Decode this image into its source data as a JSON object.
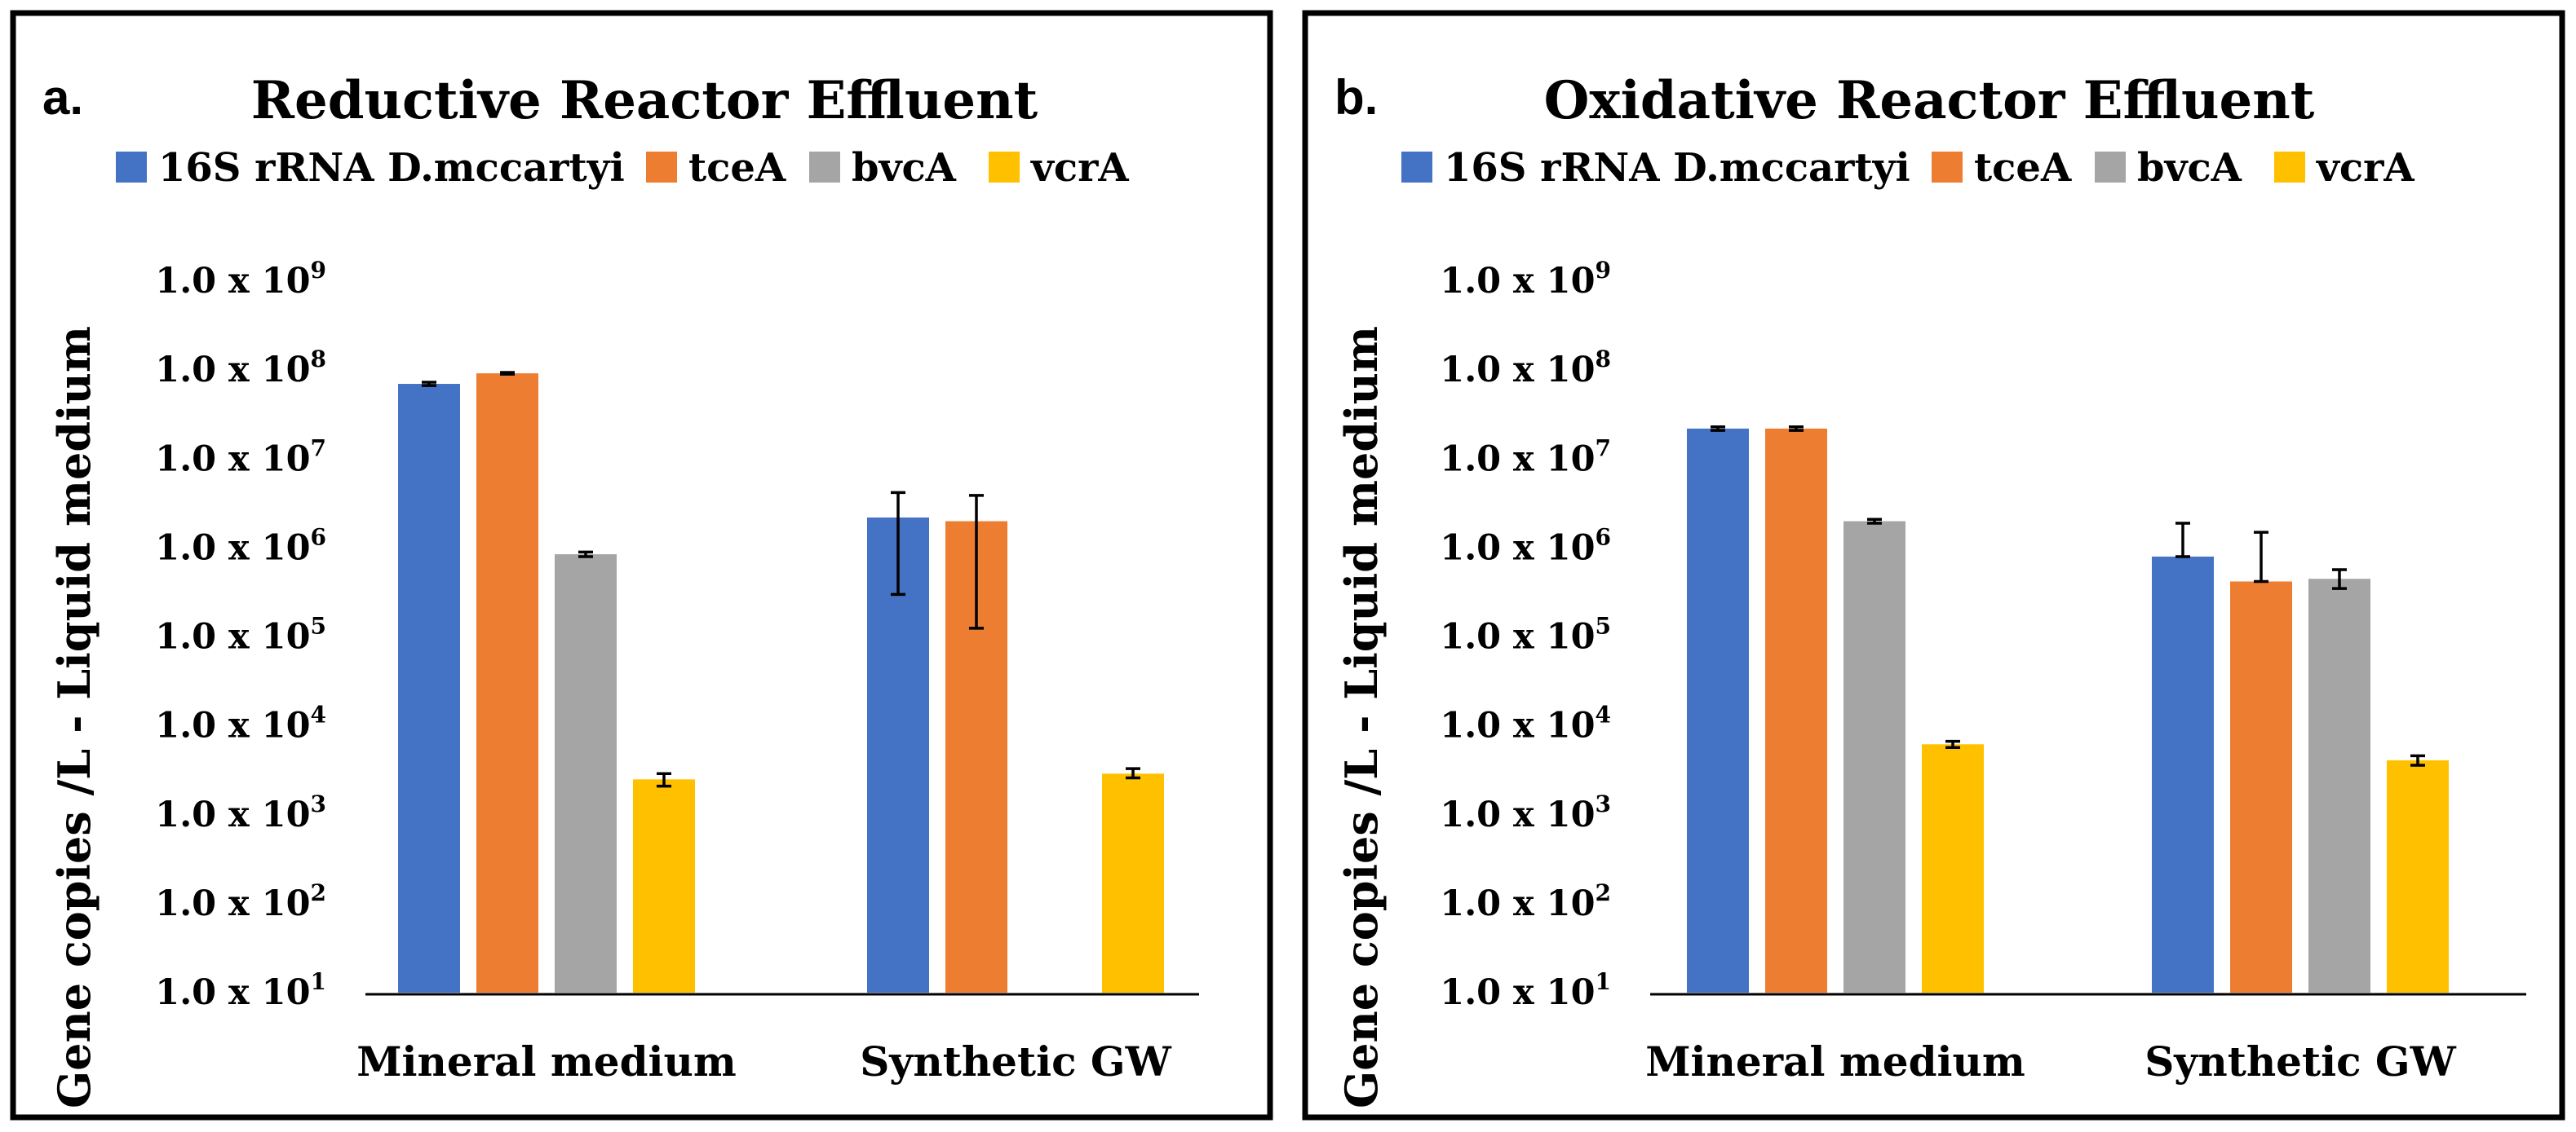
{
  "chart_data": [
    {
      "type": "bar",
      "panel_label": "a.",
      "title": "Reductive Reactor Effluent",
      "ylabel": "Gene copies /L -  Liquid medium",
      "yscale": "log",
      "ylim": [
        10,
        1000000000
      ],
      "yticks": [
        {
          "base": "1.0 x 10",
          "exp": "1"
        },
        {
          "base": "1.0 x 10",
          "exp": "2"
        },
        {
          "base": "1.0 x 10",
          "exp": "3"
        },
        {
          "base": "1.0 x 10",
          "exp": "4"
        },
        {
          "base": "1.0 x 10",
          "exp": "5"
        },
        {
          "base": "1.0 x 10",
          "exp": "6"
        },
        {
          "base": "1.0 x 10",
          "exp": "7"
        },
        {
          "base": "1.0 x 10",
          "exp": "8"
        },
        {
          "base": "1.0 x 10",
          "exp": "9"
        }
      ],
      "categories": [
        "Mineral medium",
        "Synthetic GW"
      ],
      "legend_position": "top",
      "series": [
        {
          "name": "16S rRNA D.mccartyi",
          "color": "#4472C4",
          "values": [
            70000000,
            2200000
          ],
          "err_low": [
            67000000,
            300000
          ],
          "err_high": [
            73000000,
            4200000
          ]
        },
        {
          "name": "tceA",
          "color": "#ED7D31",
          "values": [
            92000000,
            2000000
          ],
          "err_low": [
            90000000,
            125000
          ],
          "err_high": [
            94000000,
            3900000
          ]
        },
        {
          "name": "bvcA",
          "color": "#A5A5A5",
          "values": [
            850000,
            null
          ],
          "err_low": [
            800000,
            null
          ],
          "err_high": [
            900000,
            null
          ]
        },
        {
          "name": "vcrA",
          "color": "#FFC000",
          "values": [
            2500,
            2900
          ],
          "err_low": [
            2100,
            2600
          ],
          "err_high": [
            2900,
            3300
          ]
        }
      ]
    },
    {
      "type": "bar",
      "panel_label": "b.",
      "title": "Oxidative Reactor Effluent",
      "ylabel": "Gene copies /L -  Liquid medium",
      "yscale": "log",
      "ylim": [
        10,
        1000000000
      ],
      "yticks": [
        {
          "base": "1.0 x 10",
          "exp": "1"
        },
        {
          "base": "1.0 x 10",
          "exp": "2"
        },
        {
          "base": "1.0 x 10",
          "exp": "3"
        },
        {
          "base": "1.0 x 10",
          "exp": "4"
        },
        {
          "base": "1.0 x 10",
          "exp": "5"
        },
        {
          "base": "1.0 x 10",
          "exp": "6"
        },
        {
          "base": "1.0 x 10",
          "exp": "7"
        },
        {
          "base": "1.0 x 10",
          "exp": "8"
        },
        {
          "base": "1.0 x 10",
          "exp": "9"
        }
      ],
      "categories": [
        "Mineral medium",
        "Synthetic GW"
      ],
      "legend_position": "top",
      "series": [
        {
          "name": "16S rRNA D.mccartyi",
          "color": "#4472C4",
          "values": [
            22000000,
            800000
          ],
          "err_low": [
            21000000,
            800000
          ],
          "err_high": [
            23000000,
            1900000
          ]
        },
        {
          "name": "tceA",
          "color": "#ED7D31",
          "values": [
            22000000,
            420000
          ],
          "err_low": [
            21000000,
            420000
          ],
          "err_high": [
            23000000,
            1500000
          ]
        },
        {
          "name": "bvcA",
          "color": "#A5A5A5",
          "values": [
            2000000,
            450000
          ],
          "err_low": [
            1900000,
            350000
          ],
          "err_high": [
            2100000,
            570000
          ]
        },
        {
          "name": "vcrA",
          "color": "#FFC000",
          "values": [
            6200,
            4100
          ],
          "err_low": [
            5700,
            3600
          ],
          "err_high": [
            6700,
            4600
          ]
        }
      ]
    }
  ]
}
